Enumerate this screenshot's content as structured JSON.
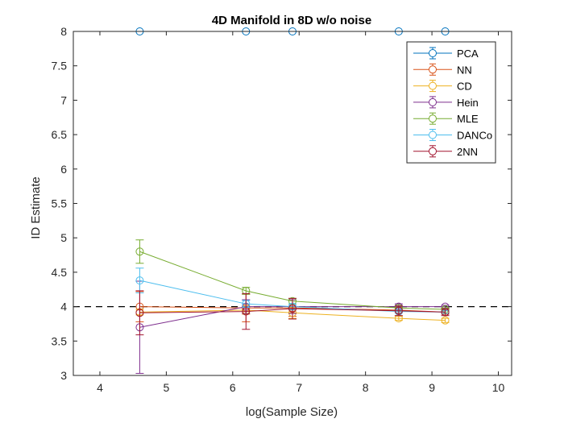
{
  "chart_data": {
    "type": "line",
    "title": "4D Manifold in 8D w/o noise",
    "xlabel": "log(Sample Size)",
    "ylabel": "ID Estimate",
    "xlim": [
      3.6,
      10.2
    ],
    "ylim": [
      3,
      8
    ],
    "xticks": [
      4,
      5,
      6,
      7,
      8,
      9,
      10
    ],
    "yticks": [
      3,
      3.5,
      4,
      4.5,
      5,
      5.5,
      6,
      6.5,
      7,
      7.5,
      8
    ],
    "x": [
      4.6,
      6.2,
      6.9,
      8.5,
      9.2
    ],
    "reference_line": {
      "y": 4,
      "style": "dashed",
      "color": "#000000"
    },
    "legend_position": "top-right",
    "grid": false,
    "series": [
      {
        "name": "PCA",
        "color": "#0072BD",
        "values": [
          8,
          8,
          8,
          8,
          8
        ],
        "errors": [
          0,
          0,
          0,
          0,
          0
        ]
      },
      {
        "name": "NN",
        "color": "#D95319",
        "values": [
          4.0,
          3.98,
          3.98,
          3.95,
          3.92
        ],
        "errors": [
          0.22,
          0.2,
          0.12,
          0.04,
          0.03
        ]
      },
      {
        "name": "CD",
        "color": "#EDB120",
        "values": [
          3.92,
          3.95,
          3.91,
          3.83,
          3.8
        ],
        "errors": [
          0.04,
          0.06,
          0.08,
          0.03,
          0.03
        ]
      },
      {
        "name": "Hein",
        "color": "#7E2F8E",
        "values": [
          3.7,
          4.0,
          4.0,
          4.0,
          4.0
        ],
        "errors": [
          0.67,
          0.1,
          0.1,
          0.04,
          0.02
        ]
      },
      {
        "name": "MLE",
        "color": "#77AC30",
        "values": [
          4.8,
          4.23,
          4.08,
          3.98,
          3.96
        ],
        "errors": [
          0.17,
          0.05,
          0.04,
          0.03,
          0.02
        ]
      },
      {
        "name": "DANCo",
        "color": "#4DBEEE",
        "values": [
          4.38,
          4.04,
          4.0,
          3.93,
          3.92
        ],
        "errors": [
          0.18,
          0.05,
          0.04,
          0.02,
          0.02
        ]
      },
      {
        "name": "2NN",
        "color": "#A2142F",
        "values": [
          3.91,
          3.93,
          3.97,
          3.94,
          3.92
        ],
        "errors": [
          0.32,
          0.26,
          0.15,
          0.07,
          0.05
        ]
      }
    ]
  }
}
